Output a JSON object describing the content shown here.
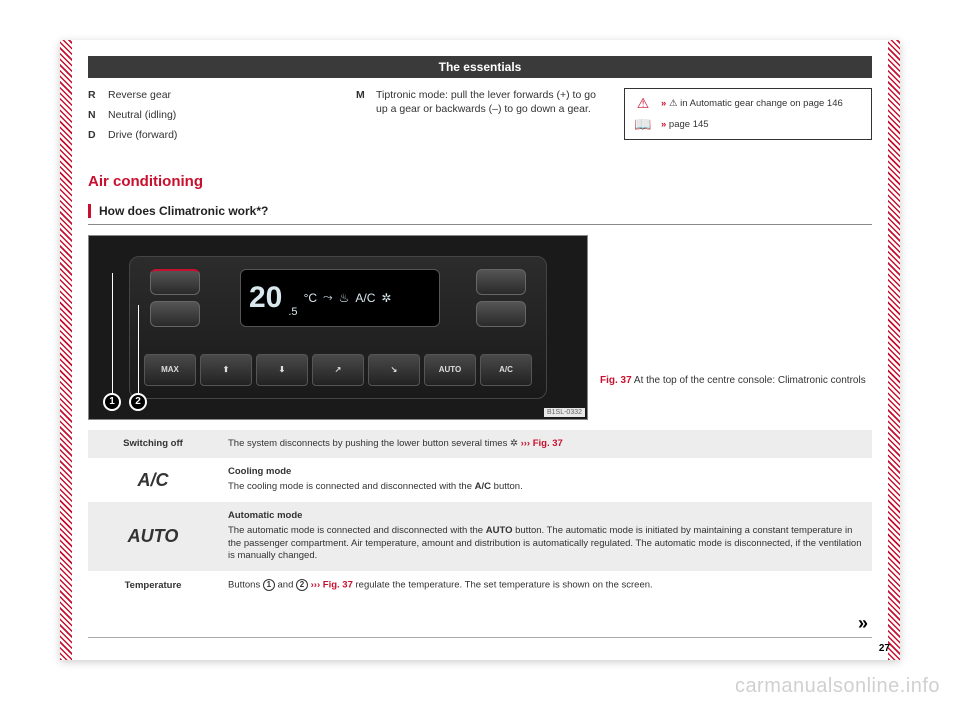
{
  "watermark": "carmanualsonline.info",
  "header": "The essentials",
  "gears_left": [
    {
      "letter": "R",
      "desc": "Reverse gear"
    },
    {
      "letter": "N",
      "desc": "Neutral (idling)"
    },
    {
      "letter": "D",
      "desc": "Drive (forward)"
    }
  ],
  "gears_mid": [
    {
      "letter": "M",
      "desc": "Tiptronic mode: pull the lever forwards (+) to go up a gear or backwards (–) to go down a gear."
    }
  ],
  "refbox": {
    "row1_prefix": "»",
    "row1_text": " in Automatic gear change on page 146",
    "row2_prefix": "»",
    "row2_text": " page 145"
  },
  "section_title": "Air conditioning",
  "subsection": "How does Climatronic work*?",
  "figure": {
    "temp_big": "20",
    "temp_small": ".5",
    "unit": "°C",
    "ac_label": "A/C",
    "buttons": [
      "MAX",
      "⬆",
      "⬇",
      "↗",
      "↘",
      "AUTO",
      "A/C"
    ],
    "callout1": "1",
    "callout2": "2",
    "img_code": "B1SL-0332"
  },
  "caption": {
    "label": "Fig. 37",
    "text": "  At the top of the centre console: Climatronic controls"
  },
  "table": {
    "r1_label": "Switching off",
    "r1_text_a": "The system disconnects by pushing the lower button several times ",
    "r1_ref": " ››› Fig. 37",
    "r2_big": "A/C",
    "r2_title": "Cooling mode",
    "r2_text_a": "The cooling mode is connected and disconnected with the ",
    "r2_btn": "A/C",
    "r2_text_b": " button.",
    "r3_big": "AUTO",
    "r3_title": "Automatic mode",
    "r3_text_a": "The automatic mode is connected and disconnected with the ",
    "r3_btn": "AUTO",
    "r3_text_b": " button. The automatic mode is initiated by maintaining a constant temperature in the passenger compartment. Air temperature, amount and distribution is automatically regulated. The automatic mode is disconnected, if the ventilation is manually changed.",
    "r4_label": "Temperature",
    "r4_text_a": "Buttons ",
    "r4_c1": "1",
    "r4_text_b": " and ",
    "r4_c2": "2",
    "r4_ref": " ››› Fig. 37",
    "r4_text_c": " regulate the temperature. The set temperature is shown on the screen."
  },
  "continue": "»",
  "page_num": "27"
}
